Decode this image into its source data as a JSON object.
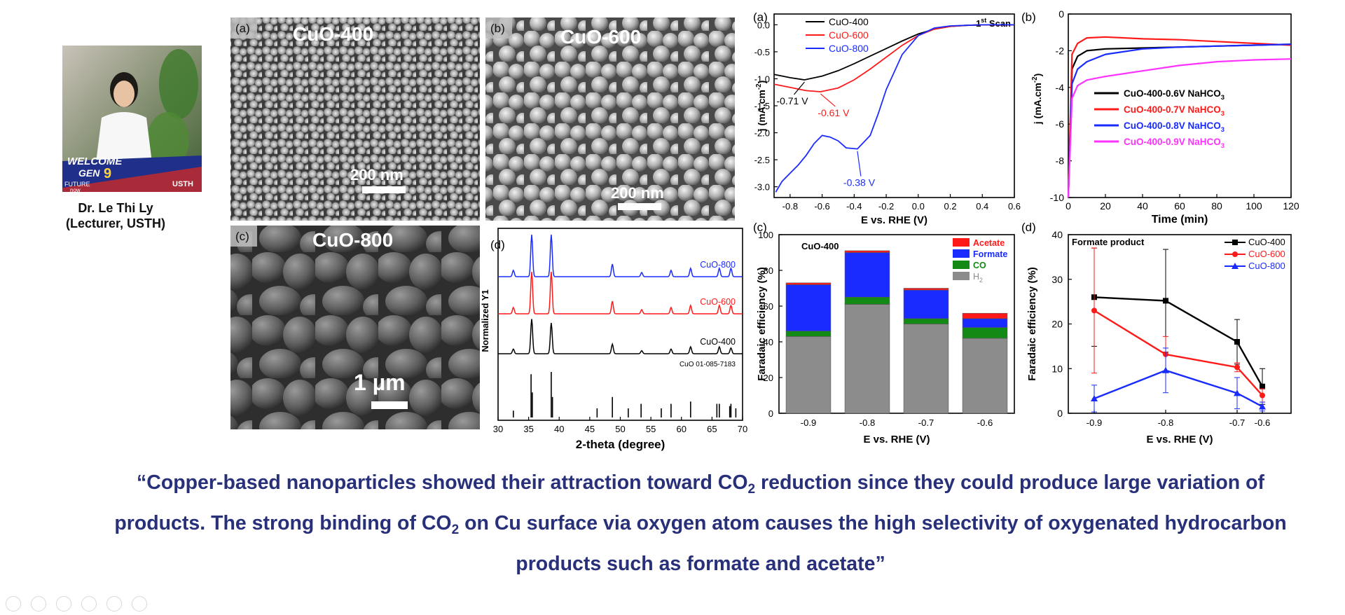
{
  "profile": {
    "name": "Dr. Le Thi Ly",
    "role": "(Lecturer, USTH)",
    "photo_banner": {
      "welcome": "WELCOME",
      "gen": "GEN",
      "gen_num": "9",
      "future": "FUTURE",
      "now": "now",
      "logo": "USTH"
    }
  },
  "sem_panels": [
    {
      "tag": "(a)",
      "label": "CuO-400",
      "scale": "200 nm"
    },
    {
      "tag": "(b)",
      "label": "CuO-600",
      "scale": "200 nm"
    },
    {
      "tag": "(c)",
      "label": "CuO-800",
      "scale": "1 µm"
    }
  ],
  "quote": {
    "part1": "“Copper-based nanoparticles showed their attraction toward CO",
    "sub1": "2",
    "part2": " reduction since they could produce large variation of products. The strong binding of CO",
    "sub2": "2",
    "part3": " on Cu surface via oxygen atom causes the high selectivity of oxygenated hydrocarbon products such as formate and acetate”"
  },
  "colors": {
    "quote": "#28307a",
    "black": "#000000",
    "red": "#ff1a1a",
    "blue": "#1a2bff",
    "magenta": "#ff33ff",
    "green": "#138a13",
    "gray": "#8c8c8c"
  },
  "chart_data": [
    {
      "id": "xrd",
      "type": "line",
      "panel_tag": "(d)",
      "xlabel": "2-theta (degree)",
      "ylabel": "Normalized Y1",
      "xlim": [
        30,
        70
      ],
      "xticks": [
        30,
        35,
        40,
        45,
        50,
        55,
        60,
        65,
        70
      ],
      "series": [
        {
          "name": "CuO-800",
          "color": "#1a2bff",
          "peaks": [
            [
              32.5,
              0.15
            ],
            [
              35.5,
              1.0
            ],
            [
              38.7,
              1.0
            ],
            [
              48.7,
              0.3
            ],
            [
              53.5,
              0.1
            ],
            [
              58.3,
              0.15
            ],
            [
              61.5,
              0.2
            ],
            [
              66.2,
              0.2
            ],
            [
              68.1,
              0.2
            ]
          ]
        },
        {
          "name": "CuO-600",
          "color": "#ff1a1a",
          "peaks": [
            [
              32.5,
              0.15
            ],
            [
              35.5,
              1.0
            ],
            [
              38.7,
              1.0
            ],
            [
              48.7,
              0.3
            ],
            [
              53.5,
              0.1
            ],
            [
              58.3,
              0.15
            ],
            [
              61.5,
              0.2
            ],
            [
              66.2,
              0.2
            ],
            [
              68.1,
              0.2
            ]
          ]
        },
        {
          "name": "CuO-400",
          "color": "#000000",
          "peaks": [
            [
              32.5,
              0.12
            ],
            [
              35.5,
              0.9
            ],
            [
              38.7,
              0.8
            ],
            [
              48.7,
              0.25
            ],
            [
              53.5,
              0.08
            ],
            [
              58.3,
              0.12
            ],
            [
              61.5,
              0.18
            ],
            [
              66.2,
              0.18
            ],
            [
              68.1,
              0.15
            ]
          ]
        }
      ],
      "reference": {
        "name": "CuO 01-085-7183",
        "sticks": [
          [
            32.5,
            0.15
          ],
          [
            35.4,
            0.95
          ],
          [
            35.6,
            0.55
          ],
          [
            38.7,
            1.0
          ],
          [
            38.9,
            0.45
          ],
          [
            46.2,
            0.2
          ],
          [
            48.7,
            0.45
          ],
          [
            51.3,
            0.2
          ],
          [
            53.4,
            0.3
          ],
          [
            56.7,
            0.2
          ],
          [
            58.3,
            0.3
          ],
          [
            61.5,
            0.35
          ],
          [
            65.8,
            0.3
          ],
          [
            66.2,
            0.3
          ],
          [
            67.9,
            0.25
          ],
          [
            68.1,
            0.3
          ],
          [
            68.9,
            0.2
          ]
        ]
      }
    },
    {
      "id": "lsv",
      "type": "line",
      "panel_tag": "(a)",
      "annotation": "1st Scan",
      "xlabel": "E vs. RHE (V)",
      "ylabel": "j (mA.cm-2)",
      "xlim": [
        -0.9,
        0.6
      ],
      "ylim": [
        -3.2,
        0.2
      ],
      "xticks": [
        -0.8,
        -0.6,
        -0.4,
        -0.2,
        0.0,
        0.2,
        0.4,
        0.6
      ],
      "yticks": [
        0.0,
        -0.5,
        -1.0,
        -1.5,
        -2.0,
        -2.5,
        -3.0
      ],
      "series": [
        {
          "name": "CuO-400",
          "color": "#000000",
          "x": [
            -0.9,
            -0.8,
            -0.71,
            -0.6,
            -0.5,
            -0.4,
            -0.3,
            -0.2,
            -0.1,
            0.0,
            0.1,
            0.2,
            0.3,
            0.4,
            0.5,
            0.6
          ],
          "y": [
            -0.92,
            -0.98,
            -1.02,
            -0.95,
            -0.85,
            -0.72,
            -0.58,
            -0.44,
            -0.3,
            -0.17,
            -0.08,
            -0.03,
            -0.01,
            0.0,
            0.0,
            0.0
          ]
        },
        {
          "name": "CuO-600",
          "color": "#ff1a1a",
          "x": [
            -0.9,
            -0.8,
            -0.7,
            -0.61,
            -0.5,
            -0.4,
            -0.3,
            -0.2,
            -0.1,
            0.0,
            0.1,
            0.2,
            0.3,
            0.4,
            0.5,
            0.6
          ],
          "y": [
            -1.1,
            -1.16,
            -1.22,
            -1.24,
            -1.17,
            -1.02,
            -0.82,
            -0.6,
            -0.38,
            -0.2,
            -0.08,
            -0.03,
            -0.01,
            0.0,
            0.0,
            0.0
          ]
        },
        {
          "name": "CuO-800",
          "color": "#1a2bff",
          "x": [
            -0.89,
            -0.85,
            -0.8,
            -0.75,
            -0.7,
            -0.65,
            -0.6,
            -0.55,
            -0.5,
            -0.45,
            -0.38,
            -0.3,
            -0.25,
            -0.2,
            -0.1,
            0.0,
            0.1,
            0.2,
            0.3,
            0.4,
            0.5,
            0.6
          ],
          "y": [
            -3.1,
            -2.9,
            -2.75,
            -2.6,
            -2.42,
            -2.2,
            -2.05,
            -2.08,
            -2.15,
            -2.28,
            -2.3,
            -2.05,
            -1.65,
            -1.2,
            -0.55,
            -0.2,
            -0.06,
            -0.02,
            -0.01,
            0.0,
            0.0,
            0.0
          ]
        }
      ],
      "callouts": [
        {
          "text": "-0.71 V",
          "color": "#000000",
          "x": -0.71,
          "y": -1.02
        },
        {
          "text": "-0.61 V",
          "color": "#ff1a1a",
          "x": -0.61,
          "y": -1.24
        },
        {
          "text": "-0.38 V",
          "color": "#1a2bff",
          "x": -0.38,
          "y": -2.3
        }
      ]
    },
    {
      "id": "ca",
      "type": "line",
      "panel_tag": "(b)",
      "xlabel": "Time (min)",
      "ylabel": "j (mA.cm-2)",
      "xlim": [
        0,
        120
      ],
      "ylim": [
        -10,
        0
      ],
      "xticks": [
        0,
        20,
        40,
        60,
        80,
        100,
        120
      ],
      "yticks": [
        0,
        -2,
        -4,
        -6,
        -8,
        -10
      ],
      "series": [
        {
          "name": "CuO-400-0.6V NaHCO3",
          "color": "#000000",
          "x": [
            0,
            2,
            5,
            10,
            20,
            40,
            60,
            80,
            100,
            120
          ],
          "y": [
            -10,
            -3.0,
            -2.3,
            -2.0,
            -1.9,
            -1.85,
            -1.8,
            -1.75,
            -1.7,
            -1.65
          ]
        },
        {
          "name": "CuO-400-0.7V NaHCO3",
          "color": "#ff1a1a",
          "x": [
            0,
            2,
            5,
            10,
            20,
            40,
            60,
            80,
            100,
            120
          ],
          "y": [
            -10,
            -2.2,
            -1.6,
            -1.3,
            -1.25,
            -1.35,
            -1.4,
            -1.5,
            -1.6,
            -1.7
          ]
        },
        {
          "name": "CuO-400-0.8V NaHCO3",
          "color": "#1a2bff",
          "x": [
            0,
            2,
            5,
            10,
            20,
            40,
            60,
            80,
            100,
            120
          ],
          "y": [
            -10,
            -3.8,
            -3.0,
            -2.6,
            -2.2,
            -1.9,
            -1.8,
            -1.75,
            -1.7,
            -1.65
          ]
        },
        {
          "name": "CuO-400-0.9V NaHCO3",
          "color": "#ff33ff",
          "x": [
            0,
            2,
            5,
            10,
            20,
            40,
            60,
            80,
            100,
            120
          ],
          "y": [
            -10,
            -4.6,
            -3.9,
            -3.6,
            -3.4,
            -3.1,
            -2.8,
            -2.6,
            -2.5,
            -2.45
          ]
        }
      ]
    },
    {
      "id": "fe-bar",
      "type": "bar",
      "panel_tag": "(c)",
      "annotation": "CuO-400",
      "xlabel": "E vs. RHE (V)",
      "ylabel": "Faradaic efficiency (%)",
      "categories": [
        "-0.9",
        "-0.8",
        "-0.7",
        "-0.6"
      ],
      "ylim": [
        0,
        100
      ],
      "yticks": [
        0,
        20,
        40,
        60,
        80,
        100
      ],
      "series": [
        {
          "name": "H2",
          "color": "#8c8c8c",
          "values": [
            43,
            61,
            50,
            42
          ]
        },
        {
          "name": "CO",
          "color": "#138a13",
          "values": [
            3,
            4,
            3,
            6
          ]
        },
        {
          "name": "Formate",
          "color": "#1a2bff",
          "values": [
            26,
            25,
            16,
            5
          ]
        },
        {
          "name": "Acetate",
          "color": "#ff1a1a",
          "values": [
            1,
            1,
            1,
            3
          ]
        }
      ],
      "legend_order": [
        "Acetate",
        "Formate",
        "CO",
        "H2"
      ]
    },
    {
      "id": "formate-fe",
      "type": "line",
      "panel_tag": "(d)",
      "annotation": "Formate product",
      "xlabel": "E vs. RHE (V)",
      "ylabel": "Faradaic efficiency (%)",
      "categories": [
        "-0.9",
        "-0.8",
        "-0.7",
        "-0.6"
      ],
      "ylim": [
        0,
        40
      ],
      "yticks": [
        0,
        10,
        20,
        30,
        40
      ],
      "series": [
        {
          "name": "CuO-400",
          "color": "#000000",
          "values": [
            26,
            25.2,
            16,
            6
          ],
          "errors": [
            11,
            11.5,
            5,
            4
          ]
        },
        {
          "name": "CuO-600",
          "color": "#ff1a1a",
          "values": [
            23,
            13.2,
            10.3,
            4
          ],
          "errors": [
            14,
            4,
            1,
            1.5
          ]
        },
        {
          "name": "CuO-800",
          "color": "#1a2bff",
          "values": [
            3.3,
            9.6,
            4.5,
            1.5
          ],
          "errors": [
            3,
            5,
            3.5,
            1
          ]
        }
      ]
    }
  ]
}
